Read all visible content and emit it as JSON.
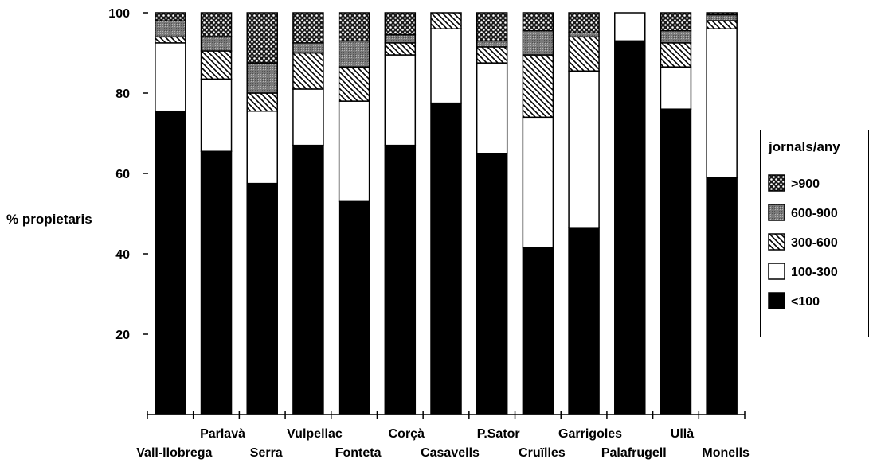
{
  "chart_data": {
    "type": "bar",
    "stacked": true,
    "ylabel": "% propietaris",
    "ylim": [
      0,
      100
    ],
    "yticks": [
      20,
      40,
      60,
      80,
      100
    ],
    "grid": false,
    "legend_position": "right",
    "legend_title": "jornals/any",
    "categories": [
      "Vall-llobrega",
      "Parlavà",
      "Serra",
      "Vulpellac",
      "Fonteta",
      "Corçà",
      "Casavells",
      "P.Sator",
      "Cruïlles",
      "Garrigoles",
      "Palafrugell",
      "Ullà",
      "Monells"
    ],
    "series": [
      {
        "name": "<100",
        "pattern": "solid",
        "color": "#000000",
        "values": [
          75.5,
          65.5,
          57.5,
          67,
          53,
          67,
          77.5,
          65,
          41.5,
          46.5,
          93,
          76,
          59
        ]
      },
      {
        "name": "100-300",
        "pattern": "white",
        "color": "#ffffff",
        "values": [
          17,
          18,
          18,
          14,
          25,
          22.5,
          18.5,
          22.5,
          32.5,
          39,
          7,
          10.5,
          37
        ]
      },
      {
        "name": "300-600",
        "pattern": "hatch",
        "color": "#ffffff",
        "values": [
          1.5,
          7,
          4.5,
          9,
          8.5,
          3,
          4,
          4,
          15.5,
          8.5,
          0,
          6,
          2
        ]
      },
      {
        "name": "600-900",
        "pattern": "grey",
        "color": "#8c8c8c",
        "values": [
          4,
          3.5,
          7.5,
          2.5,
          6.5,
          2,
          0,
          1.5,
          6,
          1,
          0,
          3,
          1.5
        ]
      },
      {
        "name": ">900",
        "pattern": "dots",
        "color": "#555555",
        "values": [
          2,
          6,
          12.5,
          7.5,
          7,
          5.5,
          0,
          7,
          4.5,
          5,
          0,
          4.5,
          0.5
        ]
      }
    ]
  }
}
